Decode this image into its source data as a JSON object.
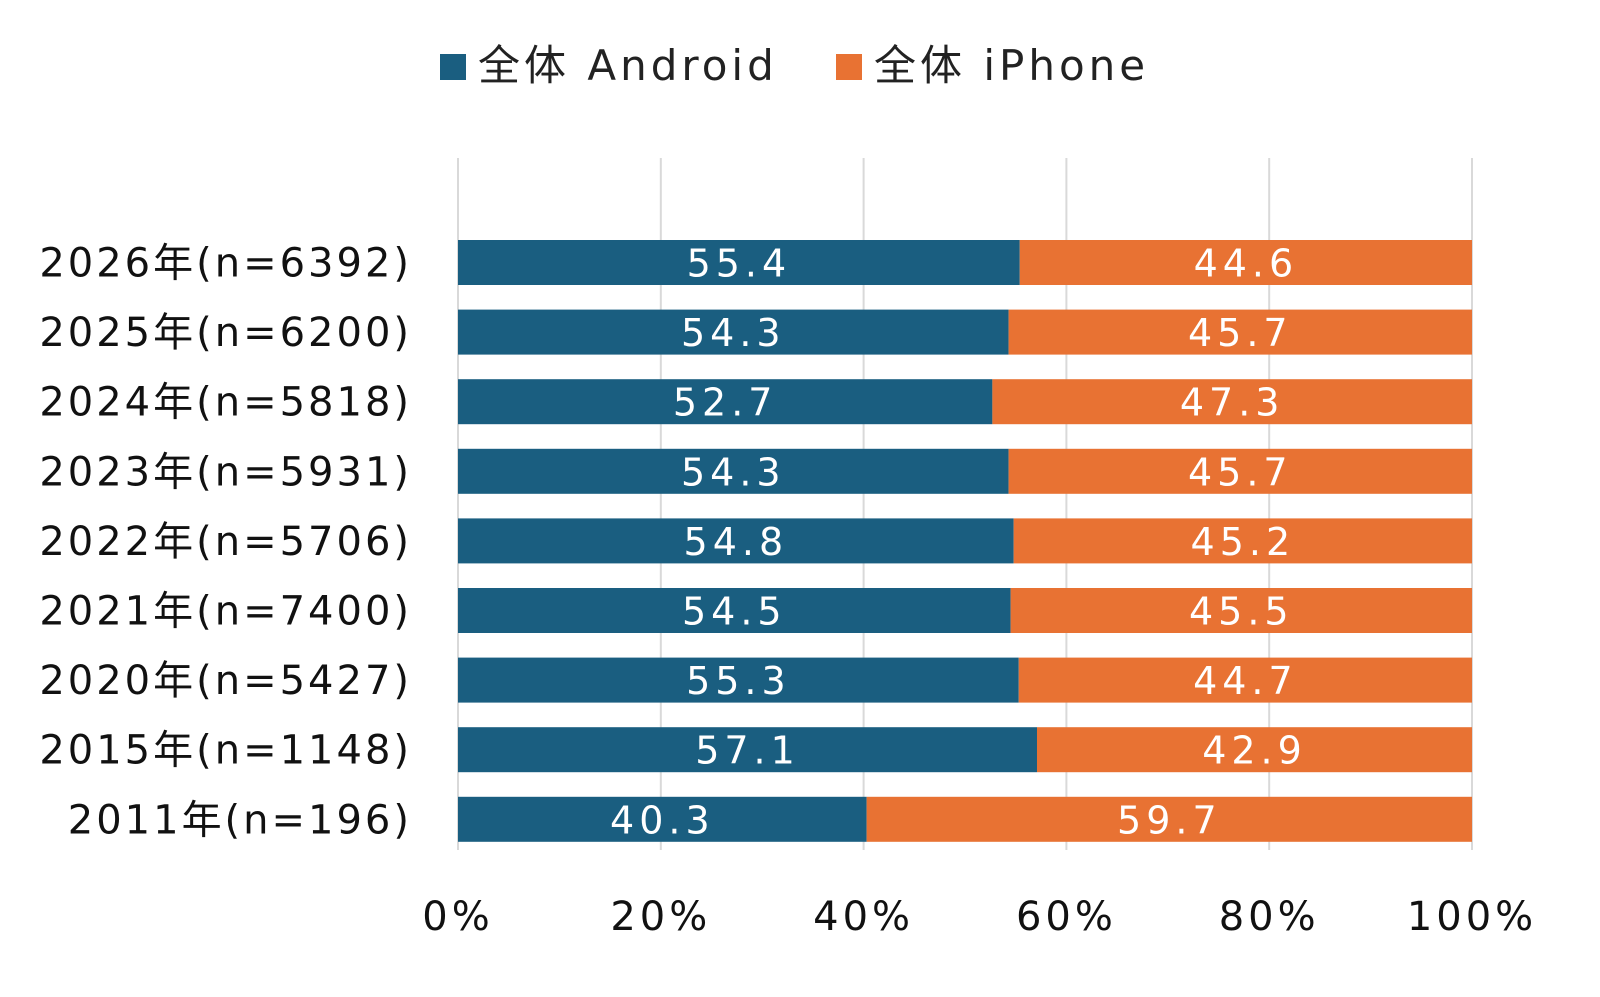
{
  "chart_data": {
    "type": "bar",
    "orientation": "horizontal",
    "stacked": true,
    "categories": [
      "2026年(n=6392)",
      "2025年(n=6200)",
      "2024年(n=5818)",
      "2023年(n=5931)",
      "2022年(n=5706)",
      "2021年(n=7400)",
      "2020年(n=5427)",
      "2015年(n=1148)",
      "2011年(n=196)"
    ],
    "series": [
      {
        "name": "全体 Android",
        "color": "#1a5e80",
        "values": [
          55.4,
          54.3,
          52.7,
          54.3,
          54.8,
          54.5,
          55.3,
          57.1,
          40.3
        ]
      },
      {
        "name": "全体 iPhone",
        "color": "#e87233",
        "values": [
          44.6,
          45.7,
          47.3,
          45.7,
          45.2,
          45.5,
          44.7,
          42.9,
          59.7
        ]
      }
    ],
    "xlim": [
      0,
      100
    ],
    "xticks": [
      "0%",
      "20%",
      "40%",
      "60%",
      "80%",
      "100%"
    ],
    "grid": true,
    "legend": "top-center",
    "data_labels": true
  }
}
